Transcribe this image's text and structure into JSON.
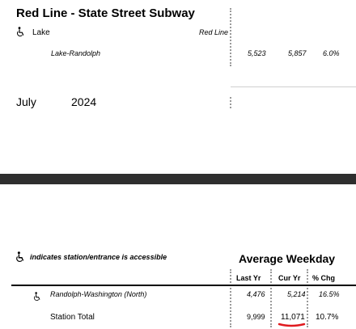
{
  "section": {
    "title": "Red Line - State Street Subway",
    "station": {
      "name": "Lake",
      "line": "Red Line",
      "icon": "accessible-icon"
    },
    "entrance": {
      "name": "Lake-Randolph",
      "last_yr": "5,523",
      "cur_yr": "5,857",
      "pct_chg": "6.0%"
    }
  },
  "period": {
    "month": "July",
    "year": "2024"
  },
  "legend": {
    "icon": "accessible-icon",
    "text": "indicates station/entrance is accessible"
  },
  "table": {
    "title": "Average Weekday",
    "headers": {
      "last_yr": "Last Yr",
      "cur_yr": "Cur Yr",
      "pct_chg": "% Chg"
    },
    "rows": [
      {
        "name": "Randolph-Washington (North)",
        "last_yr": "4,476",
        "cur_yr": "5,214",
        "pct_chg": "16.5%"
      }
    ],
    "total": {
      "name": "Station Total",
      "last_yr": "9,999",
      "cur_yr": "11,071",
      "pct_chg": "10.7%"
    }
  },
  "colors": {
    "band": "#2e2e2e",
    "highlight_underline": "#e0191e"
  }
}
